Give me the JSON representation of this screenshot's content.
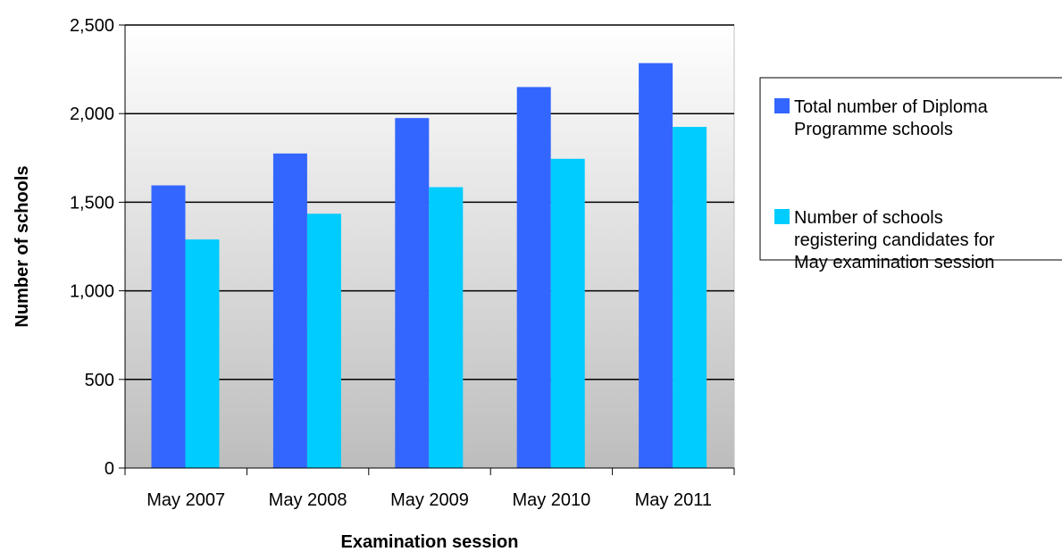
{
  "chart_data": {
    "type": "bar",
    "title": "",
    "xlabel": "Examination session",
    "ylabel": "Number of schools",
    "categories": [
      "May 2007",
      "May 2008",
      "May 2009",
      "May 2010",
      "May 2011"
    ],
    "series": [
      {
        "name": "Total number of Diploma Programme schools",
        "legend_lines": [
          "Total number of Diploma",
          "Programme schools"
        ],
        "color": "#3366ff",
        "values": [
          1595,
          1775,
          1975,
          2150,
          2285
        ]
      },
      {
        "name": "Number of schools registering candidates for May examination session",
        "legend_lines": [
          "Number of schools",
          "registering candidates for",
          "May examination session"
        ],
        "color": "#00ccff",
        "values": [
          1290,
          1435,
          1585,
          1745,
          1925
        ]
      }
    ],
    "ylim": [
      0,
      2500
    ],
    "yticks": [
      0,
      500,
      1000,
      1500,
      2000,
      2500
    ],
    "ytick_labels": [
      "0",
      "500",
      "1,000",
      "1,500",
      "2,000",
      "2,500"
    ],
    "grid": true,
    "legend_position": "right",
    "plot_background": "gradient light-gray to white"
  }
}
